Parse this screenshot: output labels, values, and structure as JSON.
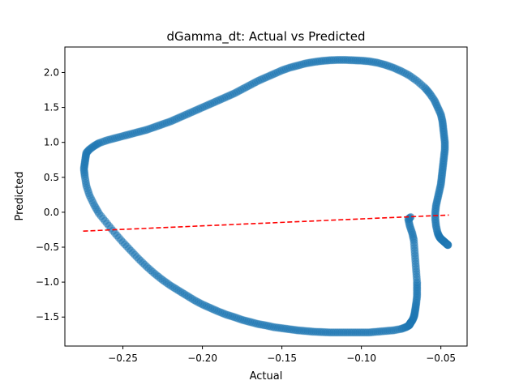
{
  "chart_data": {
    "type": "scatter",
    "title": "dGamma_dt: Actual vs Predicted",
    "xlabel": "Actual",
    "ylabel": "Predicted",
    "xlim": [
      -0.2865,
      -0.0335
    ],
    "ylim": [
      -1.915,
      2.365
    ],
    "xticks": [
      -0.25,
      -0.2,
      -0.15,
      -0.1,
      -0.05
    ],
    "xtick_labels": [
      "−0.25",
      "−0.20",
      "−0.15",
      "−0.10",
      "−0.05"
    ],
    "yticks": [
      -1.5,
      -1.0,
      -0.5,
      0.0,
      0.5,
      1.0,
      1.5,
      2.0
    ],
    "ytick_labels": [
      "−1.5",
      "−1.0",
      "−0.5",
      "0.0",
      "0.5",
      "1.0",
      "1.5",
      "2.0"
    ],
    "grid": false,
    "series": [
      {
        "marker": "circle",
        "color": "#1f77b4",
        "alpha": 0.5,
        "x": [
          -0.069,
          -0.0705,
          -0.0695,
          -0.068,
          -0.067,
          -0.0665,
          -0.066,
          -0.0655,
          -0.065,
          -0.065,
          -0.065,
          -0.0655,
          -0.066,
          -0.0665,
          -0.067,
          -0.068,
          -0.069,
          -0.0695,
          -0.07,
          -0.072,
          -0.075,
          -0.08,
          -0.085,
          -0.09,
          -0.095,
          -0.1,
          -0.105,
          -0.11,
          -0.115,
          -0.12,
          -0.125,
          -0.13,
          -0.135,
          -0.14,
          -0.145,
          -0.15,
          -0.155,
          -0.16,
          -0.165,
          -0.17,
          -0.175,
          -0.18,
          -0.185,
          -0.19,
          -0.195,
          -0.2,
          -0.205,
          -0.21,
          -0.215,
          -0.22,
          -0.225,
          -0.23,
          -0.235,
          -0.24,
          -0.245,
          -0.25,
          -0.255,
          -0.26,
          -0.265,
          -0.268,
          -0.271,
          -0.273,
          -0.274,
          -0.2745,
          -0.274,
          -0.2735,
          -0.273,
          -0.271,
          -0.268,
          -0.265,
          -0.26,
          -0.255,
          -0.25,
          -0.245,
          -0.24,
          -0.235,
          -0.23,
          -0.225,
          -0.22,
          -0.215,
          -0.21,
          -0.205,
          -0.2,
          -0.195,
          -0.19,
          -0.185,
          -0.18,
          -0.175,
          -0.17,
          -0.165,
          -0.16,
          -0.155,
          -0.15,
          -0.145,
          -0.14,
          -0.135,
          -0.13,
          -0.125,
          -0.12,
          -0.115,
          -0.11,
          -0.105,
          -0.1,
          -0.095,
          -0.09,
          -0.085,
          -0.08,
          -0.075,
          -0.07,
          -0.065,
          -0.06,
          -0.057,
          -0.054,
          -0.052,
          -0.05,
          -0.049,
          -0.0485,
          -0.048,
          -0.0475,
          -0.0475,
          -0.048,
          -0.0485,
          -0.049,
          -0.0495,
          -0.05,
          -0.051,
          -0.052,
          -0.053,
          -0.0535,
          -0.0535,
          -0.053,
          -0.052,
          -0.051,
          -0.05,
          -0.049,
          -0.048,
          -0.047,
          -0.046,
          -0.0455
        ],
        "y": [
          -0.07,
          -0.1,
          -0.2,
          -0.3,
          -0.4,
          -0.55,
          -0.7,
          -0.85,
          -1.0,
          -1.1,
          -1.2,
          -1.3,
          -1.38,
          -1.45,
          -1.5,
          -1.55,
          -1.58,
          -1.6,
          -1.62,
          -1.645,
          -1.67,
          -1.69,
          -1.7,
          -1.71,
          -1.72,
          -1.72,
          -1.72,
          -1.72,
          -1.72,
          -1.72,
          -1.715,
          -1.71,
          -1.7,
          -1.69,
          -1.675,
          -1.66,
          -1.645,
          -1.62,
          -1.6,
          -1.57,
          -1.54,
          -1.5,
          -1.465,
          -1.42,
          -1.37,
          -1.32,
          -1.26,
          -1.19,
          -1.12,
          -1.05,
          -0.97,
          -0.88,
          -0.78,
          -0.67,
          -0.55,
          -0.43,
          -0.3,
          -0.16,
          -0.02,
          0.1,
          0.24,
          0.38,
          0.52,
          0.62,
          0.7,
          0.78,
          0.85,
          0.9,
          0.95,
          0.99,
          1.03,
          1.06,
          1.09,
          1.12,
          1.15,
          1.18,
          1.22,
          1.26,
          1.3,
          1.35,
          1.4,
          1.45,
          1.5,
          1.55,
          1.6,
          1.65,
          1.7,
          1.76,
          1.82,
          1.88,
          1.93,
          1.98,
          2.03,
          2.07,
          2.1,
          2.13,
          2.15,
          2.165,
          2.175,
          2.18,
          2.18,
          2.175,
          2.17,
          2.16,
          2.14,
          2.11,
          2.07,
          2.02,
          1.96,
          1.88,
          1.78,
          1.7,
          1.6,
          1.5,
          1.4,
          1.3,
          1.2,
          1.1,
          1.0,
          0.9,
          0.8,
          0.7,
          0.6,
          0.5,
          0.4,
          0.3,
          0.2,
          0.1,
          0.0,
          -0.1,
          -0.2,
          -0.3,
          -0.35,
          -0.38,
          -0.4,
          -0.42,
          -0.44,
          -0.46,
          -0.47
        ]
      },
      {
        "marker": "dashed-line",
        "color": "#ff0000",
        "x": [
          -0.275,
          -0.045
        ],
        "y": [
          -0.27,
          -0.04
        ]
      }
    ]
  }
}
